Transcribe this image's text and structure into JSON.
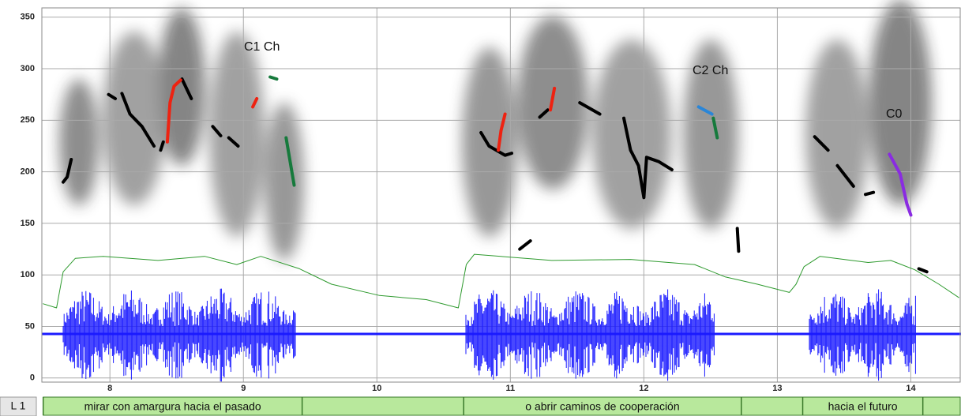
{
  "chart_data": {
    "type": "line",
    "xlim": [
      7.49,
      14.37
    ],
    "xticks": [
      8,
      9,
      10,
      11,
      12,
      13,
      14
    ],
    "ylim": [
      -4,
      359
    ],
    "yticks": [
      0,
      50,
      100,
      150,
      200,
      250,
      300,
      350
    ],
    "grid": true,
    "series": [
      {
        "color": "#000000",
        "x": [
          7.65,
          7.68,
          7.71,
          null,
          7.99,
          8.04,
          null,
          8.09,
          8.15,
          8.24,
          8.33,
          null,
          8.38,
          8.4,
          null,
          8.54,
          8.61,
          null,
          8.77,
          8.83,
          null,
          8.89,
          8.96,
          null,
          10.78,
          10.84,
          10.96,
          11.01,
          null,
          11.07,
          11.15,
          null,
          11.22,
          11.28,
          null,
          11.52,
          11.67,
          null,
          11.85,
          11.9,
          11.96,
          12.0,
          12.02,
          12.11,
          12.21,
          null,
          12.7,
          12.71,
          null,
          13.28,
          13.38,
          null,
          13.45,
          13.57,
          null,
          13.66,
          13.72,
          null,
          14.06,
          14.12
        ],
        "values": [
          190,
          195,
          212,
          null,
          275,
          271,
          null,
          276,
          256,
          244,
          225,
          null,
          221,
          229,
          null,
          290,
          271,
          null,
          244,
          235,
          null,
          233,
          225,
          null,
          238,
          225,
          216,
          218,
          null,
          125,
          133,
          null,
          253,
          260,
          null,
          267,
          256,
          null,
          252,
          221,
          206,
          175,
          214,
          210,
          202,
          null,
          145,
          123,
          null,
          234,
          221,
          null,
          206,
          186,
          null,
          178,
          180,
          null,
          106,
          103
        ]
      },
      {
        "color": "#ee2211",
        "x": [
          8.43,
          8.45,
          8.48,
          8.53,
          null,
          9.07,
          9.1,
          null,
          10.91,
          10.93,
          10.96,
          null,
          11.3,
          11.33
        ],
        "values": [
          229,
          267,
          283,
          289,
          null,
          263,
          271,
          null,
          221,
          240,
          256,
          null,
          260,
          281
        ]
      },
      {
        "color": "#167a3c",
        "x": [
          9.2,
          9.25,
          null,
          9.32,
          9.35,
          9.38,
          null,
          12.52,
          12.55,
          null,
          12.67
        ],
        "values": [
          292,
          290,
          null,
          233,
          210,
          187,
          null,
          252,
          233,
          null,
          120
        ]
      },
      {
        "color": "#2a86d8",
        "x": [
          12.41,
          12.51
        ],
        "values": [
          263,
          256
        ]
      },
      {
        "color": "#8a2be2",
        "x": [
          13.84,
          13.92,
          13.97,
          14.0,
          null,
          14.05
        ],
        "values": [
          217,
          198,
          169,
          158,
          null,
          114
        ]
      },
      {
        "color": "#2e9a2e",
        "x": [
          7.5,
          7.6,
          7.65,
          7.74,
          7.95,
          8.36,
          8.71,
          8.95,
          9.13,
          9.42,
          9.66,
          10.02,
          10.37,
          10.61,
          10.67,
          10.73,
          11.31,
          11.9,
          12.38,
          12.61,
          12.85,
          13.09,
          13.14,
          13.2,
          13.32,
          13.68,
          13.85,
          14.03,
          14.21,
          14.36
        ],
        "values": [
          72,
          68,
          103,
          116,
          118,
          114,
          118,
          110,
          118,
          106,
          91,
          80,
          76,
          68,
          110,
          120,
          114,
          115,
          110,
          98,
          91,
          83,
          91,
          108,
          118,
          112,
          114,
          105,
          91,
          78
        ]
      }
    ],
    "annotations": [
      "C1  Ch",
      "C2 Ch",
      "C0"
    ],
    "tier": {
      "name": "L 1",
      "boundaries": [
        7.5,
        9.44,
        10.65,
        12.73,
        13.19,
        14.09
      ],
      "labels": [
        "mirar con amargura hacia el pasado",
        null,
        "o abrir caminos de cooperación",
        null,
        "hacia el futuro"
      ]
    }
  }
}
